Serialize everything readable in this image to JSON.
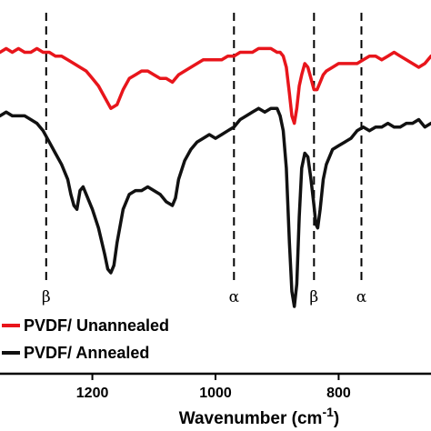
{
  "chart_data": {
    "type": "line",
    "title": "",
    "xlabel": "Wavenumber (cm",
    "xlabel_superscript": "-1",
    "xlabel_close": ")",
    "ylabel": "",
    "xlim": [
      1350,
      650
    ],
    "x_reversed": true,
    "grid": false,
    "legend_position": "bottom-left",
    "xticks": [
      {
        "value": 1200,
        "label": "1200"
      },
      {
        "value": 1000,
        "label": "1000"
      },
      {
        "value": 800,
        "label": "800"
      }
    ],
    "phase_markers": [
      {
        "x": 1275,
        "label": "β"
      },
      {
        "x": 970,
        "label": "α"
      },
      {
        "x": 840,
        "label": "β"
      },
      {
        "x": 763,
        "label": "α"
      }
    ],
    "series": [
      {
        "name": "PVDF/ Unannealed",
        "color": "#e8151b",
        "x": [
          1350,
          1340,
          1330,
          1320,
          1310,
          1300,
          1290,
          1280,
          1270,
          1260,
          1250,
          1240,
          1230,
          1220,
          1210,
          1200,
          1190,
          1180,
          1170,
          1160,
          1150,
          1140,
          1130,
          1120,
          1110,
          1100,
          1090,
          1080,
          1070,
          1060,
          1050,
          1040,
          1030,
          1020,
          1010,
          1000,
          990,
          980,
          970,
          960,
          950,
          940,
          930,
          920,
          910,
          900,
          895,
          890,
          885,
          880,
          876,
          872,
          868,
          864,
          860,
          855,
          850,
          845,
          840,
          835,
          830,
          825,
          820,
          810,
          800,
          790,
          780,
          770,
          760,
          750,
          740,
          730,
          720,
          710,
          700,
          690,
          680,
          670,
          660,
          650
        ],
        "y": [
          0.86,
          0.87,
          0.86,
          0.87,
          0.86,
          0.86,
          0.87,
          0.86,
          0.86,
          0.85,
          0.85,
          0.84,
          0.83,
          0.82,
          0.81,
          0.79,
          0.77,
          0.74,
          0.71,
          0.72,
          0.76,
          0.79,
          0.8,
          0.81,
          0.81,
          0.8,
          0.79,
          0.79,
          0.78,
          0.8,
          0.81,
          0.82,
          0.83,
          0.84,
          0.84,
          0.84,
          0.84,
          0.85,
          0.85,
          0.86,
          0.86,
          0.86,
          0.87,
          0.87,
          0.87,
          0.86,
          0.86,
          0.85,
          0.82,
          0.75,
          0.69,
          0.67,
          0.71,
          0.77,
          0.8,
          0.83,
          0.82,
          0.79,
          0.76,
          0.76,
          0.78,
          0.8,
          0.81,
          0.82,
          0.83,
          0.83,
          0.83,
          0.83,
          0.84,
          0.85,
          0.85,
          0.84,
          0.85,
          0.86,
          0.85,
          0.84,
          0.83,
          0.82,
          0.83,
          0.85
        ]
      },
      {
        "name": "PVDF/ Annealed",
        "color": "#111111",
        "x": [
          1350,
          1340,
          1330,
          1320,
          1310,
          1300,
          1290,
          1280,
          1270,
          1260,
          1250,
          1240,
          1235,
          1230,
          1225,
          1220,
          1215,
          1210,
          1200,
          1190,
          1180,
          1175,
          1170,
          1165,
          1160,
          1150,
          1140,
          1130,
          1120,
          1110,
          1100,
          1090,
          1080,
          1070,
          1065,
          1060,
          1050,
          1040,
          1030,
          1020,
          1010,
          1000,
          990,
          980,
          970,
          960,
          950,
          940,
          930,
          920,
          910,
          900,
          895,
          890,
          885,
          880,
          876,
          872,
          868,
          864,
          860,
          855,
          850,
          845,
          840,
          837,
          834,
          830,
          825,
          820,
          810,
          800,
          790,
          780,
          770,
          760,
          750,
          740,
          730,
          720,
          710,
          700,
          690,
          680,
          670,
          660,
          650
        ],
        "y": [
          0.69,
          0.7,
          0.69,
          0.69,
          0.69,
          0.68,
          0.67,
          0.65,
          0.62,
          0.59,
          0.56,
          0.52,
          0.48,
          0.45,
          0.44,
          0.49,
          0.5,
          0.48,
          0.44,
          0.39,
          0.32,
          0.28,
          0.27,
          0.29,
          0.35,
          0.44,
          0.48,
          0.49,
          0.49,
          0.5,
          0.49,
          0.48,
          0.46,
          0.45,
          0.47,
          0.52,
          0.57,
          0.6,
          0.62,
          0.63,
          0.64,
          0.63,
          0.64,
          0.65,
          0.66,
          0.68,
          0.69,
          0.7,
          0.71,
          0.7,
          0.71,
          0.71,
          0.69,
          0.65,
          0.55,
          0.35,
          0.22,
          0.18,
          0.24,
          0.42,
          0.55,
          0.59,
          0.58,
          0.52,
          0.45,
          0.4,
          0.39,
          0.44,
          0.52,
          0.56,
          0.6,
          0.61,
          0.62,
          0.63,
          0.65,
          0.66,
          0.65,
          0.66,
          0.66,
          0.67,
          0.66,
          0.66,
          0.67,
          0.67,
          0.68,
          0.66,
          0.67
        ]
      }
    ]
  }
}
